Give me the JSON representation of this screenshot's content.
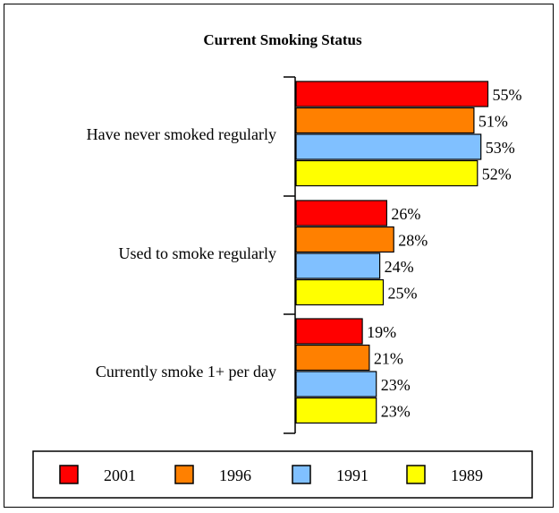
{
  "chart_data": {
    "type": "bar",
    "orientation": "horizontal",
    "title": "Current Smoking Status",
    "xlabel": "",
    "ylabel": "",
    "categories": [
      "Have never smoked regularly",
      "Used to smoke regularly",
      "Currently smoke 1+ per day"
    ],
    "series": [
      {
        "name": "2001",
        "color": "#ff0000",
        "values": [
          55,
          26,
          19
        ],
        "labels": [
          "55%",
          "26%",
          "19%"
        ]
      },
      {
        "name": "1996",
        "color": "#ff8000",
        "values": [
          51,
          28,
          21
        ],
        "labels": [
          "51%",
          "28%",
          "21%"
        ]
      },
      {
        "name": "1991",
        "color": "#80c0ff",
        "values": [
          53,
          24,
          23
        ],
        "labels": [
          "53%",
          "24%",
          "23%"
        ]
      },
      {
        "name": "1989",
        "color": "#ffff00",
        "values": [
          52,
          25,
          23
        ],
        "labels": [
          "52%",
          "25%",
          "23%"
        ]
      }
    ],
    "value_unit": "%",
    "grid": false,
    "legend_position": "bottom"
  }
}
